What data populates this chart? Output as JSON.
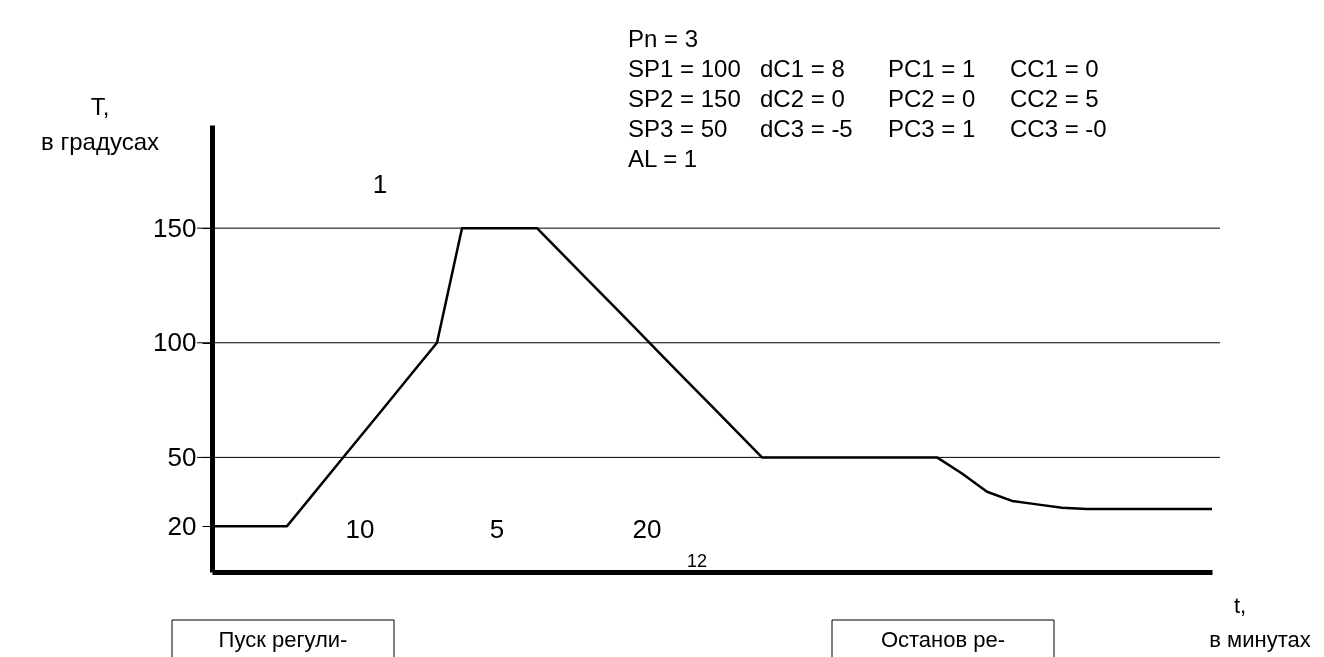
{
  "chart_data": {
    "type": "line",
    "ylabel": "T, в градусах",
    "xlabel": "t, в минутах",
    "categories": [
      null,
      null,
      null,
      null,
      null,
      null,
      null,
      null,
      null,
      null,
      null,
      null,
      null,
      null,
      null,
      null,
      null,
      null,
      null,
      null,
      null,
      null,
      null,
      null,
      null,
      null,
      null,
      null,
      null,
      null,
      null,
      null,
      null,
      null,
      null,
      null,
      null,
      null,
      null,
      null,
      null
    ],
    "series": [
      {
        "color": "#000000",
        "values": [
          20,
          20,
          20,
          20,
          33.3,
          46.7,
          60,
          73.3,
          86.7,
          100,
          150,
          150,
          150,
          150,
          138.9,
          127.8,
          116.7,
          105.6,
          94.4,
          83.3,
          72.2,
          61.1,
          50,
          50,
          50,
          50,
          50,
          50,
          50,
          50,
          43,
          35,
          31,
          29.5,
          28,
          27.5,
          27.5,
          27.5,
          27.5,
          27.5,
          27.5
        ]
      }
    ],
    "ylim": [
      0,
      195
    ],
    "yticks": [
      20,
      50,
      100,
      150
    ],
    "tick_labels": "y",
    "grid": false,
    "legend": false,
    "marker": "none",
    "line_style": "solid",
    "ref_lines": [
      {
        "axis": "y",
        "value": 50
      },
      {
        "axis": "y",
        "value": 100
      },
      {
        "axis": "y",
        "value": 150
      }
    ],
    "annotations": [
      "Pn = 3",
      "SP1 = 100",
      "dC1 = 8",
      "PC1 = 1",
      "CC1 = 0",
      "SP2 = 150",
      "dC2 = 0",
      "PC2 = 0",
      "CC2 = 5",
      "SP3 = 50",
      "dC3 = -5",
      "PC3 = 1",
      "CC3 = -0",
      "AL = 1",
      "12",
      "Пуск регули-",
      "Останов ре-",
      "10",
      "5",
      "20",
      "1"
    ]
  }
}
